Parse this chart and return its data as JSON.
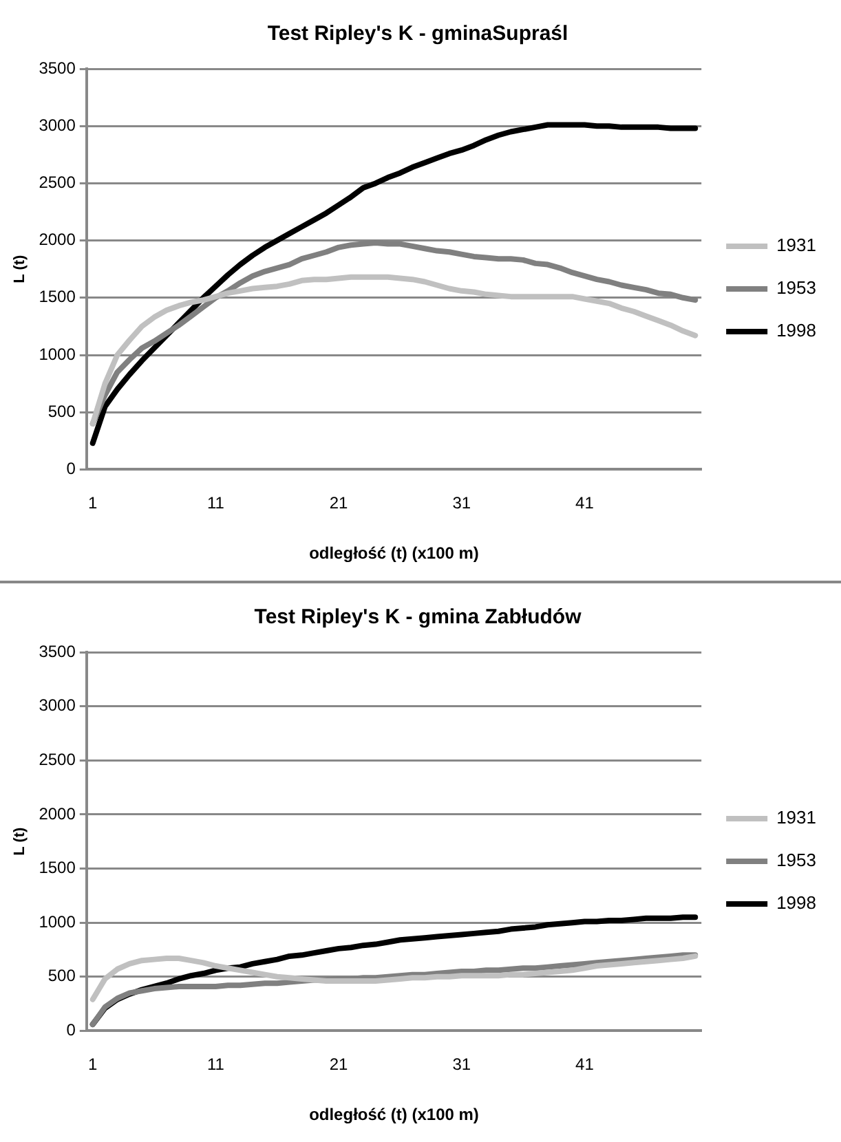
{
  "chart_data": [
    {
      "type": "line",
      "title": "Test Ripley's K - gminaSupraśl",
      "xlabel": "odległość (t) (x100 m)",
      "ylabel": "L (t)",
      "categories": [
        "1",
        null,
        null,
        null,
        null,
        null,
        null,
        null,
        null,
        null,
        "11",
        null,
        null,
        null,
        null,
        null,
        null,
        null,
        null,
        null,
        "21",
        null,
        null,
        null,
        null,
        null,
        null,
        null,
        null,
        null,
        "31",
        null,
        null,
        null,
        null,
        null,
        null,
        null,
        null,
        null,
        "41",
        null,
        null,
        null,
        null,
        null,
        null,
        null,
        null,
        null
      ],
      "ylim": [
        0,
        3500
      ],
      "yticks": [
        0,
        500,
        1000,
        1500,
        2000,
        2500,
        3000,
        3500
      ],
      "grid": "y",
      "legend": "right",
      "marker": "none",
      "series": [
        {
          "name": "1931",
          "color": "#c0c0c0",
          "values": [
            400,
            750,
            1000,
            1130,
            1250,
            1330,
            1390,
            1430,
            1460,
            1480,
            1510,
            1540,
            1560,
            1580,
            1590,
            1600,
            1620,
            1650,
            1660,
            1660,
            1670,
            1680,
            1680,
            1680,
            1680,
            1670,
            1660,
            1640,
            1610,
            1580,
            1560,
            1550,
            1530,
            1520,
            1510,
            1510,
            1510,
            1510,
            1510,
            1510,
            1490,
            1470,
            1450,
            1410,
            1380,
            1340,
            1300,
            1260,
            1210,
            1170
          ]
        },
        {
          "name": "1953",
          "color": "#808080",
          "values": [
            400,
            650,
            850,
            960,
            1060,
            1120,
            1190,
            1260,
            1340,
            1420,
            1500,
            1560,
            1630,
            1690,
            1730,
            1760,
            1790,
            1840,
            1870,
            1900,
            1940,
            1960,
            1970,
            1980,
            1970,
            1970,
            1950,
            1930,
            1910,
            1900,
            1880,
            1860,
            1850,
            1840,
            1840,
            1830,
            1800,
            1790,
            1760,
            1720,
            1690,
            1660,
            1640,
            1610,
            1590,
            1570,
            1540,
            1530,
            1500,
            1480
          ]
        },
        {
          "name": "1998",
          "color": "#000000",
          "values": [
            230,
            550,
            700,
            830,
            950,
            1060,
            1170,
            1280,
            1390,
            1500,
            1600,
            1700,
            1790,
            1870,
            1940,
            2000,
            2060,
            2120,
            2180,
            2240,
            2310,
            2380,
            2460,
            2500,
            2550,
            2590,
            2640,
            2680,
            2720,
            2760,
            2790,
            2830,
            2880,
            2920,
            2950,
            2970,
            2990,
            3010,
            3010,
            3010,
            3010,
            3000,
            3000,
            2990,
            2990,
            2990,
            2990,
            2980,
            2980,
            2980
          ]
        }
      ]
    },
    {
      "type": "line",
      "title": "Test Ripley's K - gmina Zabłudów",
      "xlabel": "odległość (t) (x100 m)",
      "ylabel": "L (t)",
      "categories": [
        "1",
        null,
        null,
        null,
        null,
        null,
        null,
        null,
        null,
        null,
        "11",
        null,
        null,
        null,
        null,
        null,
        null,
        null,
        null,
        null,
        "21",
        null,
        null,
        null,
        null,
        null,
        null,
        null,
        null,
        null,
        "31",
        null,
        null,
        null,
        null,
        null,
        null,
        null,
        null,
        null,
        "41",
        null,
        null,
        null,
        null,
        null,
        null,
        null,
        null,
        null
      ],
      "ylim": [
        0,
        3500
      ],
      "yticks": [
        0,
        500,
        1000,
        1500,
        2000,
        2500,
        3000,
        3500
      ],
      "grid": "y",
      "legend": "right",
      "marker": "none",
      "series": [
        {
          "name": "1931",
          "color": "#c0c0c0",
          "values": [
            290,
            480,
            570,
            620,
            650,
            660,
            670,
            670,
            650,
            630,
            600,
            580,
            560,
            540,
            520,
            500,
            490,
            480,
            470,
            460,
            460,
            460,
            460,
            460,
            470,
            480,
            490,
            490,
            500,
            500,
            510,
            510,
            510,
            510,
            520,
            520,
            530,
            540,
            550,
            560,
            580,
            600,
            610,
            620,
            630,
            640,
            650,
            660,
            670,
            690
          ]
        },
        {
          "name": "1953",
          "color": "#808080",
          "values": [
            60,
            220,
            300,
            350,
            370,
            390,
            400,
            410,
            410,
            410,
            410,
            420,
            420,
            430,
            440,
            440,
            450,
            460,
            470,
            470,
            480,
            480,
            490,
            490,
            500,
            510,
            520,
            520,
            530,
            540,
            550,
            550,
            560,
            560,
            570,
            580,
            580,
            590,
            600,
            610,
            620,
            630,
            640,
            650,
            660,
            670,
            680,
            690,
            700,
            700
          ]
        },
        {
          "name": "1998",
          "color": "#000000",
          "values": [
            60,
            210,
            290,
            340,
            380,
            410,
            440,
            480,
            510,
            530,
            560,
            580,
            590,
            620,
            640,
            660,
            690,
            700,
            720,
            740,
            760,
            770,
            790,
            800,
            820,
            840,
            850,
            860,
            870,
            880,
            890,
            900,
            910,
            920,
            940,
            950,
            960,
            980,
            990,
            1000,
            1010,
            1010,
            1020,
            1020,
            1030,
            1040,
            1040,
            1040,
            1050,
            1050
          ]
        }
      ]
    }
  ]
}
